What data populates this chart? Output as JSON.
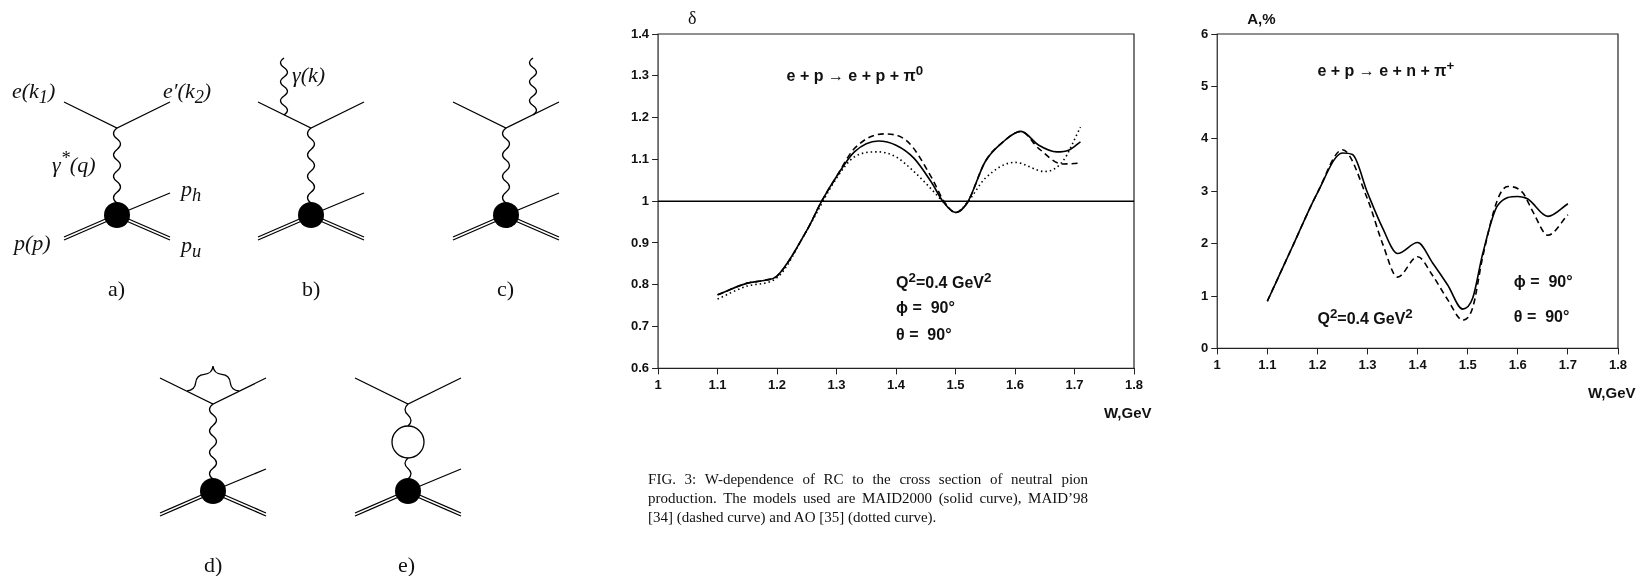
{
  "chart_data": [
    {
      "type": "other",
      "annotations": [
        "e(k$_{1}$)",
        "e′(k$_{2}$)",
        "γ$^{*}$(q)",
        "p$_{h}$",
        "p(p)",
        "p$_{u}$",
        "γ(k)",
        "a)",
        "b)",
        "c)",
        "d)",
        "e)"
      ]
    },
    {
      "type": "line",
      "ylabel": "δ",
      "xlabel": "W,GeV",
      "annotations": [
        "e + p → e + p + π$^{0}$",
        "Q$^{2}$=0.4 GeV$^{2}$",
        "ϕ =  90°",
        "θ =  90°",
        "FIG. 3:  W-dependence of RC to the cross section of neutral pion production. The models used are MAID2000 (solid curve), MAID’98 [34] (dashed curve) and AO [35] (dotted curve)."
      ],
      "xlim": [
        1,
        1.8
      ],
      "xticks": [
        1,
        1.1,
        1.2,
        1.3,
        1.4,
        1.5,
        1.6,
        1.7,
        1.8
      ],
      "ylim": [
        0.6,
        1.4
      ],
      "yticks": [
        0.6,
        0.7,
        0.8,
        0.9,
        1,
        1.1,
        1.2,
        1.3,
        1.4
      ],
      "ref_lines": [
        {
          "axis": "y",
          "value": 1,
          "color": "#000000"
        }
      ],
      "series": [
        {
          "color": "#000000",
          "line_style": "solid",
          "x": [
            1.1,
            1.15,
            1.18,
            1.2,
            1.25,
            1.275,
            1.3,
            1.33,
            1.37,
            1.4,
            1.43,
            1.46,
            1.48,
            1.5,
            1.52,
            1.55,
            1.58,
            1.61,
            1.64,
            1.67,
            1.69,
            1.71
          ],
          "values": [
            0.776,
            0.804,
            0.811,
            0.821,
            0.93,
            1.0,
            1.059,
            1.118,
            1.144,
            1.134,
            1.103,
            1.044,
            0.997,
            0.973,
            0.997,
            1.095,
            1.142,
            1.167,
            1.134,
            1.118,
            1.122,
            1.142
          ]
        },
        {
          "color": "#000000",
          "line_style": "dashed",
          "x": [
            1.1,
            1.15,
            1.18,
            1.2,
            1.25,
            1.275,
            1.3,
            1.33,
            1.38,
            1.42,
            1.46,
            1.48,
            1.5,
            1.52,
            1.55,
            1.58,
            1.61,
            1.64,
            1.68,
            1.71
          ],
          "values": [
            0.776,
            0.804,
            0.811,
            0.821,
            0.93,
            1.0,
            1.059,
            1.126,
            1.161,
            1.142,
            1.056,
            1.001,
            0.973,
            0.997,
            1.095,
            1.142,
            1.167,
            1.126,
            1.089,
            1.091
          ]
        },
        {
          "color": "#000000",
          "line_style": "dotted",
          "x": [
            1.1,
            1.15,
            1.2,
            1.25,
            1.3,
            1.33,
            1.37,
            1.4,
            1.43,
            1.46,
            1.48,
            1.5,
            1.52,
            1.55,
            1.6,
            1.65,
            1.68,
            1.71
          ],
          "values": [
            0.766,
            0.797,
            0.817,
            0.93,
            1.055,
            1.106,
            1.118,
            1.106,
            1.071,
            1.028,
            0.997,
            0.973,
            0.997,
            1.055,
            1.093,
            1.071,
            1.095,
            1.177
          ]
        }
      ]
    },
    {
      "type": "line",
      "ylabel": "A,%",
      "xlabel": "W,GeV",
      "annotations": [
        "e + p → e + n + π$^{+}$",
        "Q$^{2}$=0.4 GeV$^{2}$",
        "ϕ =  90°",
        "θ =  90°"
      ],
      "xlim": [
        1,
        1.8
      ],
      "xticks": [
        1,
        1.1,
        1.2,
        1.3,
        1.4,
        1.5,
        1.6,
        1.7,
        1.8
      ],
      "ylim": [
        0,
        6
      ],
      "yticks": [
        0,
        1,
        2,
        3,
        4,
        5,
        6
      ],
      "series": [
        {
          "color": "#000000",
          "line_style": "solid",
          "x": [
            1.1,
            1.15,
            1.2,
            1.25,
            1.27,
            1.3,
            1.33,
            1.36,
            1.4,
            1.43,
            1.46,
            1.49,
            1.51,
            1.53,
            1.56,
            1.6,
            1.62,
            1.66,
            1.7
          ],
          "values": [
            0.9,
            1.94,
            2.97,
            3.73,
            3.7,
            2.97,
            2.3,
            1.81,
            2.02,
            1.63,
            1.21,
            0.75,
            0.96,
            1.81,
            2.73,
            2.9,
            2.85,
            2.52,
            2.76
          ]
        },
        {
          "color": "#000000",
          "line_style": "dashed",
          "x": [
            1.1,
            1.15,
            1.2,
            1.25,
            1.3,
            1.33,
            1.36,
            1.4,
            1.43,
            1.46,
            1.49,
            1.51,
            1.53,
            1.56,
            1.58,
            1.61,
            1.63,
            1.66,
            1.7
          ],
          "values": [
            0.9,
            1.94,
            2.97,
            3.79,
            2.85,
            2.0,
            1.36,
            1.75,
            1.39,
            0.93,
            0.54,
            0.78,
            1.75,
            2.85,
            3.09,
            2.97,
            2.61,
            2.16,
            2.55
          ]
        }
      ]
    }
  ]
}
